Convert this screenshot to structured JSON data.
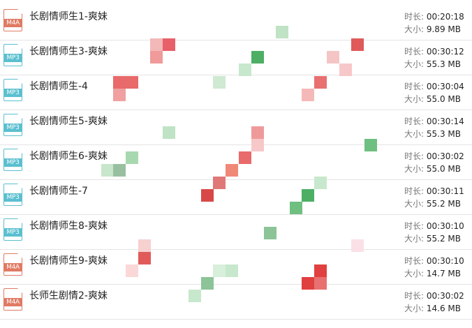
{
  "files": [
    {
      "name": "长剧情师生1-爽妹",
      "type": "M4A",
      "duration": "00:20:18",
      "size": "9.89 MB"
    },
    {
      "name": "长剧情师生3-爽妹",
      "type": "MP3",
      "duration": "00:30:12",
      "size": "55.3 MB"
    },
    {
      "name": "长剧情师生-4",
      "type": "MP3",
      "duration": "00:30:04",
      "size": "55.0 MB"
    },
    {
      "name": "长剧情师生5-爽妹",
      "type": "MP3",
      "duration": "00:30:14",
      "size": "55.3 MB"
    },
    {
      "name": "长剧情师生6-爽妹",
      "type": "MP3",
      "duration": "00:30:02",
      "size": "55.0 MB"
    },
    {
      "name": "长剧情师生-7",
      "type": "MP3",
      "duration": "00:30:11",
      "size": "55.2 MB"
    },
    {
      "name": "长剧情师生8-爽妹",
      "type": "MP3",
      "duration": "00:30:10",
      "size": "55.2 MB"
    },
    {
      "name": "长剧情师生9-爽妹",
      "type": "M4A",
      "duration": "00:30:10",
      "size": "14.7 MB"
    },
    {
      "name": "长师生剧情2-爽妹",
      "type": "M4A",
      "duration": "00:30:02",
      "size": "14.6 MB"
    }
  ],
  "labels": {
    "duration": "时长: ",
    "size": "大小: "
  },
  "colors": {
    "m4a": "#e07a63",
    "mp3": "#5bbfcf"
  }
}
